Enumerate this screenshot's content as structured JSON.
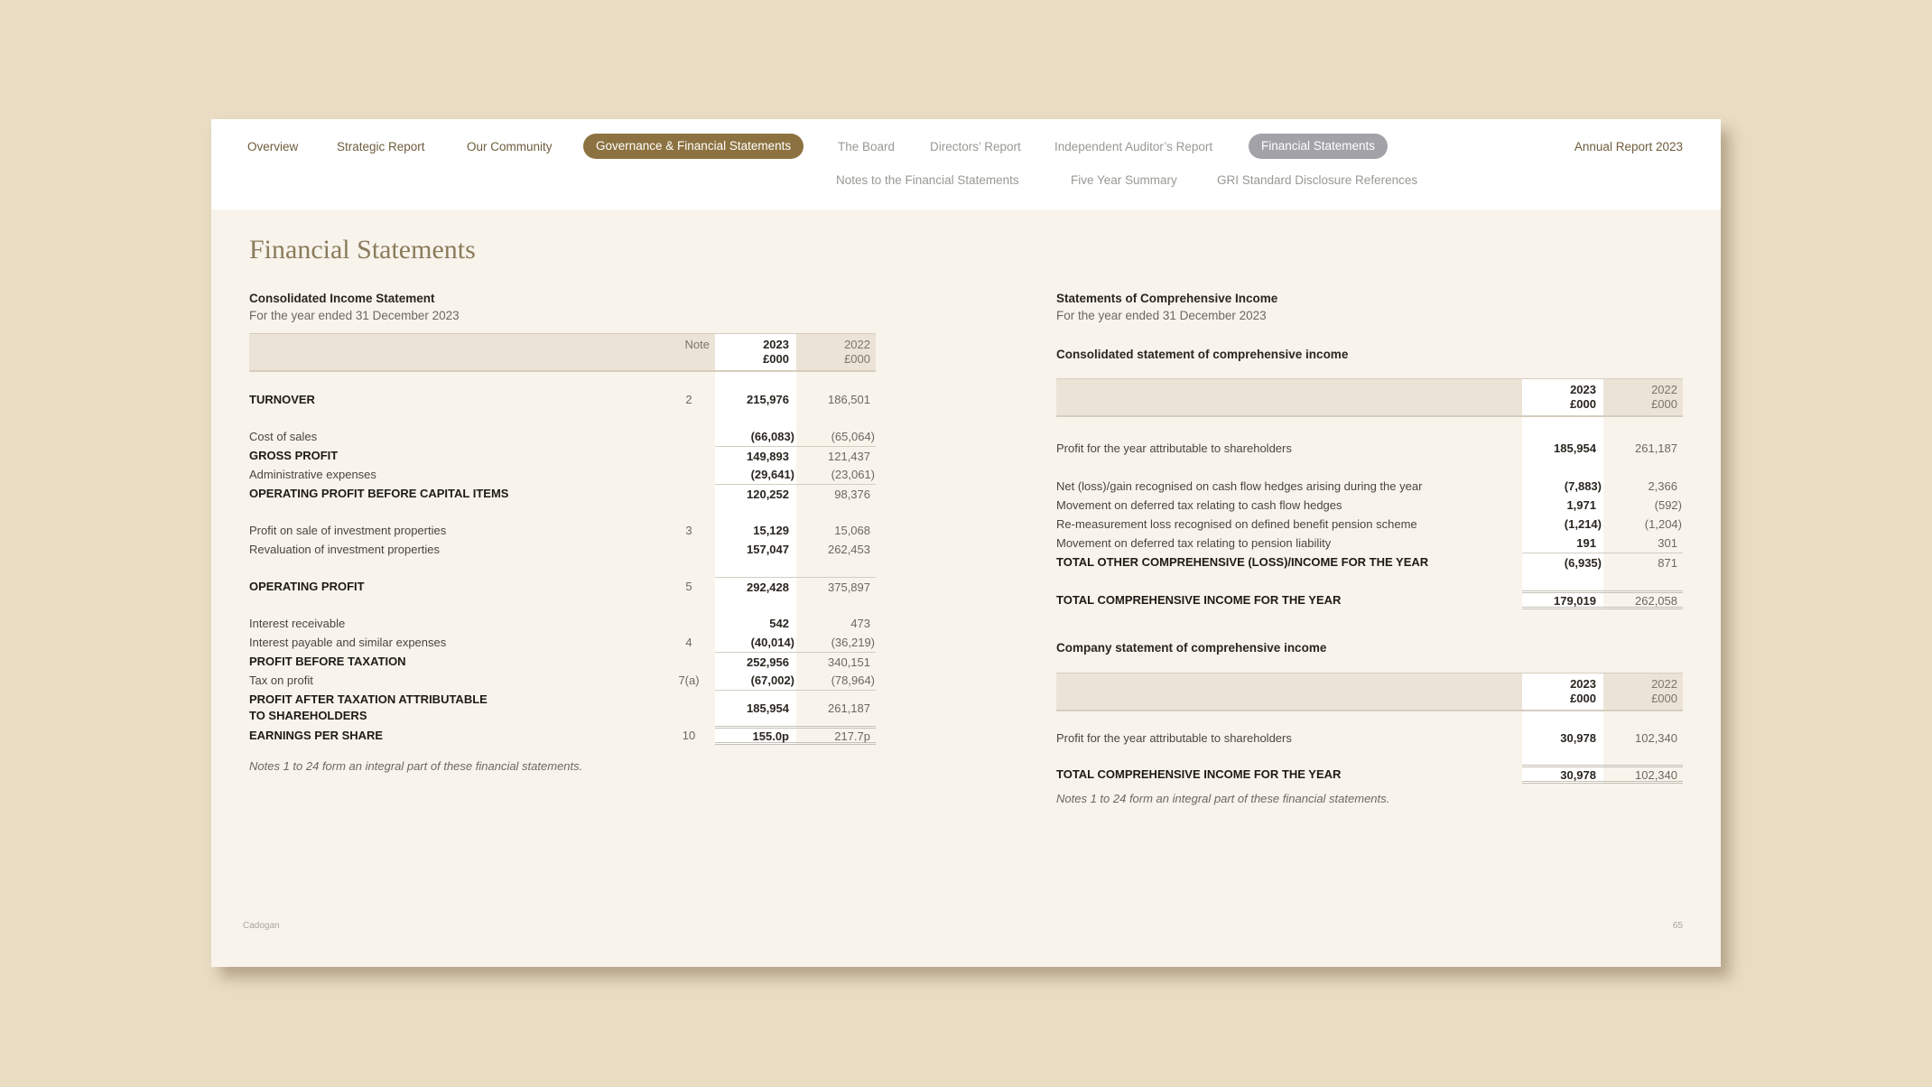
{
  "nav": {
    "items": [
      {
        "label": "Overview",
        "kind": "primary"
      },
      {
        "label": "Strategic Report",
        "kind": "primary"
      },
      {
        "label": "Our Community",
        "kind": "primary"
      },
      {
        "label": "Governance & Financial Statements",
        "kind": "active-section"
      },
      {
        "label": "The Board",
        "kind": "sub"
      },
      {
        "label": "Directors’ Report",
        "kind": "sub"
      },
      {
        "label": "Independent Auditor’s Report",
        "kind": "sub"
      },
      {
        "label": "Financial Statements",
        "kind": "active-page"
      },
      {
        "label": "Notes to the Financial Statements",
        "kind": "sub"
      },
      {
        "label": "Five Year Summary",
        "kind": "sub"
      },
      {
        "label": "GRI Standard Disclosure References",
        "kind": "sub"
      }
    ],
    "report_title": "Annual Report 2023",
    "colors": {
      "active_section": "#8c7240",
      "active_page": "#a2a2a8"
    }
  },
  "page_title": "Financial Statements",
  "income_statement": {
    "title": "Consolidated Income Statement",
    "subtitle": "For the year ended 31 December 2023",
    "header": {
      "note": "Note",
      "y2023": "2023",
      "unit2023": "£000",
      "y2022": "2022",
      "unit2022": "£000"
    },
    "groups": [
      [
        {
          "label": "TURNOVER",
          "note": "2",
          "v2023": "215,976",
          "v2022": "186,501",
          "style": "bold"
        }
      ],
      [
        {
          "label": "Cost of sales",
          "note": "",
          "v2023": "(66,083)",
          "v2022": "(65,064)",
          "style": "normal"
        },
        {
          "label": "GROSS PROFIT",
          "note": "",
          "v2023": "149,893",
          "v2022": "121,437",
          "style": "bold subtotal"
        },
        {
          "label": "Administrative expenses",
          "note": "",
          "v2023": "(29,641)",
          "v2022": "(23,061)",
          "style": "normal"
        },
        {
          "label": "OPERATING PROFIT BEFORE CAPITAL ITEMS",
          "note": "",
          "v2023": "120,252",
          "v2022": "98,376",
          "style": "bold subtotal"
        }
      ],
      [
        {
          "label": "Profit on sale of investment properties",
          "note": "3",
          "v2023": "15,129",
          "v2022": "15,068",
          "style": "normal"
        },
        {
          "label": "Revaluation of investment properties",
          "note": "",
          "v2023": "157,047",
          "v2022": "262,453",
          "style": "normal"
        }
      ],
      [
        {
          "label": "OPERATING PROFIT",
          "note": "5",
          "v2023": "292,428",
          "v2022": "375,897",
          "style": "bold subtotal"
        }
      ],
      [
        {
          "label": "Interest receivable",
          "note": "",
          "v2023": "542",
          "v2022": "473",
          "style": "normal"
        },
        {
          "label": "Interest payable and similar expenses",
          "note": "4",
          "v2023": "(40,014)",
          "v2022": "(36,219)",
          "style": "normal"
        },
        {
          "label": "PROFIT BEFORE TAXATION",
          "note": "",
          "v2023": "252,956",
          "v2022": "340,151",
          "style": "bold subtotal"
        },
        {
          "label": "Tax on profit",
          "note": "7(a)",
          "v2023": "(67,002)",
          "v2022": "(78,964)",
          "style": "normal"
        },
        {
          "label": "PROFIT AFTER TAXATION ATTRIBUTABLE\nTO SHAREHOLDERS",
          "note": "",
          "v2023": "185,954",
          "v2022": "261,187",
          "style": "bold subtotal tall"
        },
        {
          "label": "EARNINGS PER SHARE",
          "note": "10",
          "v2023": "155.0p",
          "v2022": "217.7p",
          "style": "bold total"
        }
      ]
    ],
    "footnote": "Notes 1 to 24 form an integral part of these financial statements."
  },
  "comprehensive": {
    "title": "Statements of Comprehensive Income",
    "subtitle": "For the year ended 31 December 2023",
    "consolidated": {
      "title": "Consolidated statement of comprehensive income",
      "header": {
        "y2023": "2023",
        "unit2023": "£000",
        "y2022": "2022",
        "unit2022": "£000"
      },
      "groups": [
        [
          {
            "label": "Profit for the year attributable to shareholders",
            "v2023": "185,954",
            "v2022": "261,187",
            "style": "normal"
          }
        ],
        [
          {
            "label": "Net (loss)/gain recognised on cash flow hedges arising during the year",
            "v2023": "(7,883)",
            "v2022": "2,366",
            "style": "normal"
          },
          {
            "label": "Movement on deferred tax relating to cash flow hedges",
            "v2023": "1,971",
            "v2022": "(592)",
            "style": "normal"
          },
          {
            "label": "Re-measurement loss recognised on defined benefit pension scheme",
            "v2023": "(1,214)",
            "v2022": "(1,204)",
            "style": "normal"
          },
          {
            "label": "Movement on deferred tax relating to pension liability",
            "v2023": "191",
            "v2022": "301",
            "style": "normal"
          },
          {
            "label": "TOTAL OTHER COMPREHENSIVE (LOSS)/INCOME FOR THE YEAR",
            "v2023": "(6,935)",
            "v2022": "871",
            "style": "bold subtotal"
          }
        ],
        [
          {
            "label": "TOTAL COMPREHENSIVE INCOME FOR THE YEAR",
            "v2023": "179,019",
            "v2022": "262,058",
            "style": "bold total"
          }
        ]
      ]
    },
    "company": {
      "title": "Company statement of comprehensive income",
      "header": {
        "y2023": "2023",
        "unit2023": "£000",
        "y2022": "2022",
        "unit2022": "£000"
      },
      "groups": [
        [
          {
            "label": "Profit for the year attributable to shareholders",
            "v2023": "30,978",
            "v2022": "102,340",
            "style": "normal"
          }
        ],
        [
          {
            "label": "TOTAL COMPREHENSIVE INCOME FOR THE YEAR",
            "v2023": "30,978",
            "v2022": "102,340",
            "style": "bold total"
          }
        ]
      ]
    },
    "footnote": "Notes 1 to 24 form an integral part of these financial statements."
  },
  "footer": {
    "brand": "Cadogan",
    "page_number": "65"
  }
}
